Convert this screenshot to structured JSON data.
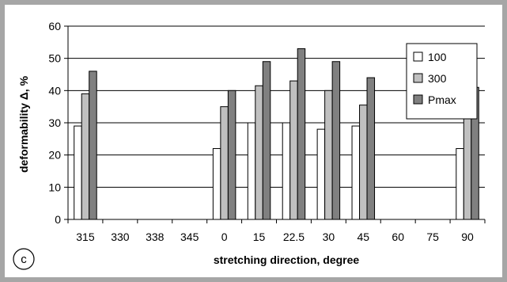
{
  "chart_data": {
    "type": "bar",
    "categories": [
      "315",
      "330",
      "338",
      "345",
      "0",
      "15",
      "22.5",
      "30",
      "45",
      "60",
      "75",
      "90"
    ],
    "series": [
      {
        "name": "100",
        "values": [
          29,
          0,
          0,
          0,
          22,
          30,
          30,
          28,
          29,
          0,
          0,
          22
        ],
        "color": "#ffffff"
      },
      {
        "name": "300",
        "values": [
          39,
          0,
          0,
          0,
          35,
          41.5,
          43,
          40,
          35.5,
          0,
          0,
          39
        ],
        "color": "#c0c0c0"
      },
      {
        "name": "Pmax",
        "values": [
          46,
          0,
          0,
          0,
          40,
          49,
          53,
          49,
          44,
          0,
          0,
          41
        ],
        "color": "#808080"
      }
    ],
    "xlabel": "stretching direction, degree",
    "ylabel": "deformability Δ, %",
    "ylim": [
      0,
      60
    ],
    "yticks": [
      "0",
      "10",
      "20",
      "30",
      "40",
      "50",
      "60"
    ],
    "grid": true,
    "legend_position": "top-right",
    "panel_label": "c"
  }
}
